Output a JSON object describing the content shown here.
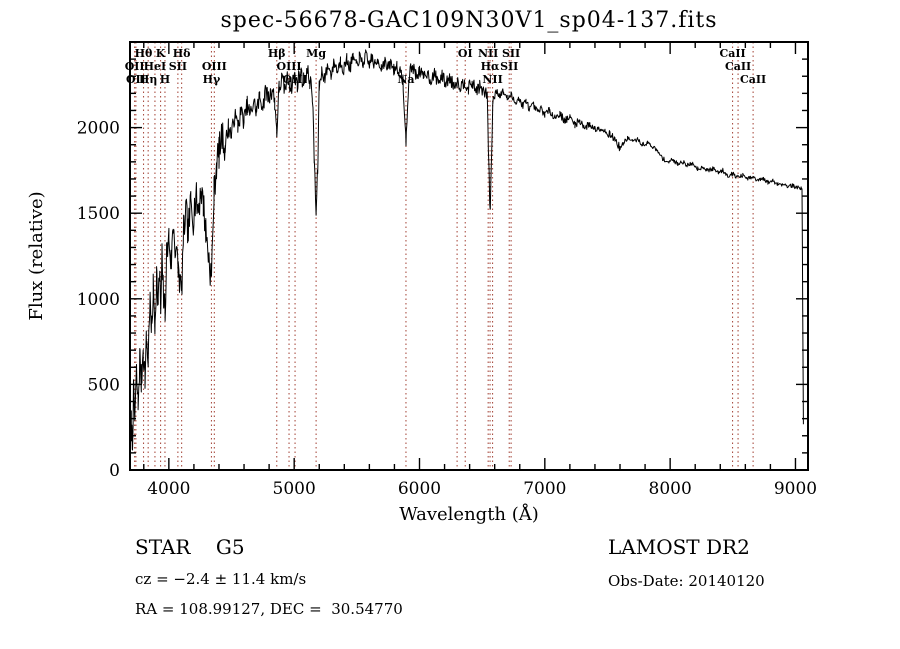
{
  "title": "spec-56678-GAC109N30V1_sp04-137.fits",
  "footer": {
    "classification": "STAR    G5",
    "survey": "LAMOST DR2",
    "cz": "cz = −2.4 ± 11.4 km/s",
    "obs_date": "Obs-Date: 20140120",
    "radec": "RA = 108.99127, DEC =  30.54770"
  },
  "chart_data": {
    "type": "line",
    "title": "spec-56678-GAC109N30V1_sp04-137.fits",
    "xlabel": "Wavelength (Å)",
    "ylabel": "Flux (relative)",
    "xlim": [
      3690,
      9100
    ],
    "ylim": [
      0,
      2500
    ],
    "x_ticks": [
      4000,
      5000,
      6000,
      7000,
      8000,
      9000
    ],
    "y_ticks": [
      0,
      500,
      1000,
      1500,
      2000
    ],
    "x_minor_step": 200,
    "y_minor_step": 100,
    "grid": false,
    "legend": null,
    "spectrum_color": "#000000",
    "spectral_line_color": "#aa5044",
    "series": [
      {
        "name": "spectrum",
        "points": [
          [
            3690,
            80
          ],
          [
            3700,
            260
          ],
          [
            3708,
            150
          ],
          [
            3718,
            430
          ],
          [
            3728,
            300
          ],
          [
            3742,
            560
          ],
          [
            3755,
            380
          ],
          [
            3768,
            660
          ],
          [
            3780,
            520
          ],
          [
            3795,
            710
          ],
          [
            3810,
            560
          ],
          [
            3822,
            760
          ],
          [
            3835,
            640
          ],
          [
            3848,
            990
          ],
          [
            3862,
            800
          ],
          [
            3875,
            1060
          ],
          [
            3889,
            860
          ],
          [
            3902,
            1150
          ],
          [
            3915,
            960
          ],
          [
            3928,
            1180
          ],
          [
            3934,
            880
          ],
          [
            3945,
            1230
          ],
          [
            3958,
            1010
          ],
          [
            3969,
            900
          ],
          [
            3982,
            1260
          ],
          [
            4000,
            1360
          ],
          [
            4018,
            1210
          ],
          [
            4036,
            1430
          ],
          [
            4055,
            1280
          ],
          [
            4075,
            1180
          ],
          [
            4101,
            1030
          ],
          [
            4118,
            1390
          ],
          [
            4136,
            1510
          ],
          [
            4155,
            1390
          ],
          [
            4175,
            1560
          ],
          [
            4195,
            1470
          ],
          [
            4215,
            1600
          ],
          [
            4235,
            1520
          ],
          [
            4255,
            1640
          ],
          [
            4275,
            1560
          ],
          [
            4295,
            1400
          ],
          [
            4315,
            1260
          ],
          [
            4340,
            1120
          ],
          [
            4360,
            1620
          ],
          [
            4380,
            1790
          ],
          [
            4400,
            1860
          ],
          [
            4425,
            1950
          ],
          [
            4450,
            1890
          ],
          [
            4475,
            2010
          ],
          [
            4500,
            1950
          ],
          [
            4525,
            2070
          ],
          [
            4550,
            2010
          ],
          [
            4575,
            2090
          ],
          [
            4600,
            2040
          ],
          [
            4625,
            2130
          ],
          [
            4650,
            2070
          ],
          [
            4675,
            2150
          ],
          [
            4700,
            2100
          ],
          [
            4725,
            2180
          ],
          [
            4750,
            2130
          ],
          [
            4775,
            2210
          ],
          [
            4800,
            2170
          ],
          [
            4825,
            2230
          ],
          [
            4845,
            2150
          ],
          [
            4861,
            1980
          ],
          [
            4880,
            2230
          ],
          [
            4900,
            2280
          ],
          [
            4925,
            2230
          ],
          [
            4950,
            2290
          ],
          [
            4975,
            2240
          ],
          [
            5000,
            2300
          ],
          [
            5025,
            2260
          ],
          [
            5050,
            2320
          ],
          [
            5075,
            2270
          ],
          [
            5100,
            2330
          ],
          [
            5125,
            2280
          ],
          [
            5145,
            2190
          ],
          [
            5160,
            1820
          ],
          [
            5175,
            1490
          ],
          [
            5188,
            1760
          ],
          [
            5200,
            2240
          ],
          [
            5220,
            2330
          ],
          [
            5245,
            2290
          ],
          [
            5270,
            2360
          ],
          [
            5295,
            2310
          ],
          [
            5320,
            2380
          ],
          [
            5345,
            2330
          ],
          [
            5370,
            2390
          ],
          [
            5395,
            2340
          ],
          [
            5420,
            2400
          ],
          [
            5445,
            2350
          ],
          [
            5470,
            2410
          ],
          [
            5495,
            2360
          ],
          [
            5520,
            2410
          ],
          [
            5545,
            2370
          ],
          [
            5570,
            2420
          ],
          [
            5595,
            2370
          ],
          [
            5620,
            2410
          ],
          [
            5645,
            2360
          ],
          [
            5670,
            2400
          ],
          [
            5695,
            2350
          ],
          [
            5720,
            2390
          ],
          [
            5745,
            2340
          ],
          [
            5770,
            2380
          ],
          [
            5795,
            2340
          ],
          [
            5820,
            2360
          ],
          [
            5845,
            2320
          ],
          [
            5868,
            2280
          ],
          [
            5880,
            2060
          ],
          [
            5892,
            1930
          ],
          [
            5905,
            2110
          ],
          [
            5920,
            2320
          ],
          [
            5945,
            2360
          ],
          [
            5970,
            2310
          ],
          [
            6000,
            2330
          ],
          [
            6030,
            2290
          ],
          [
            6060,
            2320
          ],
          [
            6090,
            2280
          ],
          [
            6120,
            2310
          ],
          [
            6150,
            2270
          ],
          [
            6180,
            2300
          ],
          [
            6210,
            2260
          ],
          [
            6240,
            2290
          ],
          [
            6270,
            2250
          ],
          [
            6300,
            2270
          ],
          [
            6330,
            2240
          ],
          [
            6360,
            2270
          ],
          [
            6390,
            2230
          ],
          [
            6420,
            2260
          ],
          [
            6450,
            2220
          ],
          [
            6480,
            2240
          ],
          [
            6510,
            2210
          ],
          [
            6540,
            2190
          ],
          [
            6563,
            1490
          ],
          [
            6585,
            2140
          ],
          [
            6610,
            2220
          ],
          [
            6640,
            2190
          ],
          [
            6670,
            2210
          ],
          [
            6700,
            2170
          ],
          [
            6730,
            2190
          ],
          [
            6760,
            2150
          ],
          [
            6790,
            2170
          ],
          [
            6820,
            2130
          ],
          [
            6850,
            2150
          ],
          [
            6880,
            2110
          ],
          [
            6910,
            2130
          ],
          [
            6940,
            2090
          ],
          [
            6970,
            2110
          ],
          [
            7000,
            2080
          ],
          [
            7040,
            2100
          ],
          [
            7080,
            2060
          ],
          [
            7120,
            2080
          ],
          [
            7160,
            2040
          ],
          [
            7200,
            2060
          ],
          [
            7240,
            2020
          ],
          [
            7280,
            2040
          ],
          [
            7320,
            2000
          ],
          [
            7360,
            2020
          ],
          [
            7400,
            1990
          ],
          [
            7440,
            2000
          ],
          [
            7480,
            1980
          ],
          [
            7520,
            1960
          ],
          [
            7560,
            1930
          ],
          [
            7600,
            1880
          ],
          [
            7630,
            1910
          ],
          [
            7660,
            1940
          ],
          [
            7700,
            1920
          ],
          [
            7740,
            1930
          ],
          [
            7780,
            1900
          ],
          [
            7820,
            1910
          ],
          [
            7860,
            1890
          ],
          [
            7900,
            1860
          ],
          [
            7940,
            1820
          ],
          [
            7980,
            1800
          ],
          [
            8020,
            1810
          ],
          [
            8060,
            1790
          ],
          [
            8100,
            1800
          ],
          [
            8140,
            1780
          ],
          [
            8180,
            1790
          ],
          [
            8220,
            1760
          ],
          [
            8260,
            1770
          ],
          [
            8300,
            1750
          ],
          [
            8340,
            1760
          ],
          [
            8380,
            1740
          ],
          [
            8420,
            1750
          ],
          [
            8460,
            1720
          ],
          [
            8500,
            1730
          ],
          [
            8540,
            1710
          ],
          [
            8580,
            1720
          ],
          [
            8620,
            1700
          ],
          [
            8660,
            1710
          ],
          [
            8700,
            1690
          ],
          [
            8740,
            1700
          ],
          [
            8780,
            1680
          ],
          [
            8820,
            1690
          ],
          [
            8860,
            1670
          ],
          [
            8900,
            1670
          ],
          [
            8940,
            1660
          ],
          [
            8980,
            1660
          ],
          [
            9010,
            1650
          ],
          [
            9040,
            1650
          ],
          [
            9052,
            1630
          ],
          [
            9058,
            950
          ],
          [
            9063,
            260
          ]
        ]
      }
    ],
    "noise": {
      "seed": 7,
      "sample_step": 5,
      "regions": [
        [
          4450,
          100
        ],
        [
          5200,
          55
        ],
        [
          6600,
          38
        ],
        [
          7600,
          22
        ],
        [
          9100,
          13
        ]
      ]
    },
    "spectral_lines": [
      {
        "label": "OII",
        "wavelength": 3727,
        "row": 2
      },
      {
        "label": "OII",
        "wavelength": 3737,
        "row": 3
      },
      {
        "label": "Hθ",
        "wavelength": 3798,
        "row": 1
      },
      {
        "label": "Hη",
        "wavelength": 3835,
        "row": 3
      },
      {
        "label": "HeI",
        "wavelength": 3889,
        "row": 2
      },
      {
        "label": "K",
        "wavelength": 3934,
        "row": 1
      },
      {
        "label": "H",
        "wavelength": 3969,
        "row": 3
      },
      {
        "label": "SII",
        "wavelength": 4072,
        "row": 2
      },
      {
        "label": "Hδ",
        "wavelength": 4102,
        "row": 1
      },
      {
        "label": "Hγ",
        "wavelength": 4340,
        "row": 3
      },
      {
        "label": "OIII",
        "wavelength": 4363,
        "row": 2
      },
      {
        "label": "Hβ",
        "wavelength": 4861,
        "row": 1
      },
      {
        "label": "OIII",
        "wavelength": 4959,
        "row": 2
      },
      {
        "label": "OIII",
        "wavelength": 5007,
        "row": 3
      },
      {
        "label": "Mg",
        "wavelength": 5175,
        "row": 1
      },
      {
        "label": "Na",
        "wavelength": 5892,
        "row": 3
      },
      {
        "label": "",
        "wavelength": 6300,
        "row": 0
      },
      {
        "label": "OI",
        "wavelength": 6365,
        "row": 1
      },
      {
        "label": "NII",
        "wavelength": 6548,
        "row": 1
      },
      {
        "label": "Hα",
        "wavelength": 6563,
        "row": 2
      },
      {
        "label": "NII",
        "wavelength": 6583,
        "row": 3
      },
      {
        "label": "SII",
        "wavelength": 6716,
        "row": 2
      },
      {
        "label": "SII",
        "wavelength": 6731,
        "row": 1
      },
      {
        "label": "CaII",
        "wavelength": 8498,
        "row": 1
      },
      {
        "label": "CaII",
        "wavelength": 8542,
        "row": 2
      },
      {
        "label": "CaII",
        "wavelength": 8662,
        "row": 3
      }
    ]
  }
}
